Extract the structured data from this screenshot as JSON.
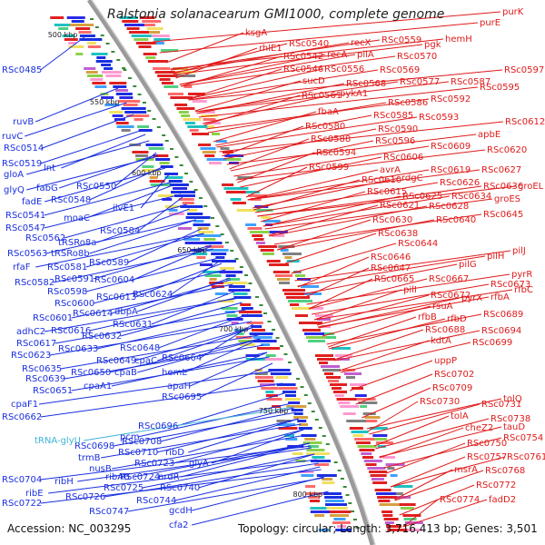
{
  "title": "Ralstonia solanacearum GMI1000, complete genome",
  "footer": {
    "accession_label": "Accession:",
    "accession": "NC_003295",
    "topology_label": "Topology:",
    "topology": "circular",
    "length_label": "Length:",
    "length": "3,716,413 bp",
    "genes_label": "Genes:",
    "genes": "3,501"
  },
  "colors": {
    "forward_labels": "#1a2fe0",
    "reverse_labels": "#e01a1a",
    "rna_labels": "#3fb2d8",
    "backbone": "#9a9a9a",
    "tick": "#3a8a3a"
  },
  "scale_ticks": [
    "500 kbp",
    "550 kbp",
    "600 kbp",
    "650 kbp",
    "700 kbp",
    "750 kbp",
    "800 kbp"
  ],
  "left_labels": [
    "RSc0485",
    "ruvB",
    "ruvC",
    "RSc0514",
    "RSc0519",
    "lnt",
    "gloA",
    "glyQ",
    "fabG",
    "fadE",
    "RSc0548",
    "RSc0550",
    "RSc0541",
    "moaC",
    "ilvE1",
    "RSc0547",
    "RSc0562",
    "tRSRo8a",
    "RSc0584",
    "RSc0563",
    "tRSRo8b",
    "rfaF",
    "RSc0581",
    "RSc0589",
    "RSc0582",
    "RSc0591",
    "RSc0604",
    "RSc0598",
    "RSc0613",
    "RSc0624",
    "RSc0600",
    "RSc0601",
    "RSc0614",
    "dbpA",
    "adhC2",
    "RSc0616",
    "RSc0631",
    "RSc0617",
    "RSc0632",
    "RSc0623",
    "RSc0633",
    "RSc0648",
    "RSc0635",
    "RSc0649",
    "cpaC",
    "RSc0664",
    "RSc0639",
    "RSc0650",
    "cpaB",
    "hemL",
    "RSc0651",
    "cpaA1",
    "apaH",
    "cpaF1",
    "RSc0695",
    "RSc0662",
    "RSc0696",
    "pcm",
    "RSc0698",
    "RSc0708",
    "trmB",
    "RSc0710",
    "ribD",
    "tRNA-glyU",
    "nusB",
    "RSc0723",
    "glyA",
    "RSc0704",
    "ribH",
    "ribAB",
    "RSc0724",
    "nrdR",
    "RSc0725",
    "RSc0740",
    "ribE",
    "RSc0726",
    "RSc0744",
    "gcdH",
    "RSc0722",
    "RSc0747",
    "cfa2"
  ],
  "right_labels": [
    "purK",
    "purE",
    "ksgA",
    "rhlE1",
    "RSc0540",
    "recX",
    "RSc0559",
    "pgk",
    "hemH",
    "RSc0542",
    "recA",
    "pilA",
    "RSc0570",
    "RSc0546",
    "RSc0556",
    "RSc0569",
    "RSc0597",
    "sucD",
    "RSc0568",
    "RSc0577",
    "RSc0587",
    "RSc0595",
    "RSc0561",
    "pykA1",
    "RSc0586",
    "RSc0592",
    "fbaA",
    "RSc0585",
    "RSc0593",
    "RSc0580",
    "RSc0590",
    "RSc0612",
    "RSc0588",
    "RSc0596",
    "apbE",
    "RSc0594",
    "RSc0609",
    "RSc0620",
    "RSc0606",
    "RSc0599",
    "avrA",
    "RSc0619",
    "RSc0627",
    "RSc0610",
    "rdgC",
    "RSc0626",
    "RSc0636",
    "groEL",
    "RSc0615",
    "RSc0625",
    "RSc0634",
    "groES",
    "RSc0621",
    "RSc0628",
    "RSc0645",
    "RSc0630",
    "RSc0640",
    "RSc0638",
    "RSc0644",
    "RSc0646",
    "pilJ",
    "pilH",
    "RSc0647",
    "pilG",
    "pyrR",
    "RSc0665",
    "RSc0667",
    "RSc0673",
    "pilI",
    "RSc0672",
    "pyrX",
    "rfbA",
    "rfbC",
    "rsuA",
    "rfbB",
    "RSc0689",
    "rfbD",
    "RSc0688",
    "RSc0694",
    "kdtA",
    "RSc0699",
    "uppP",
    "RSc0702",
    "RSc0709",
    "RSc0730",
    "RSc0731",
    "tolQ",
    "tolA",
    "RSc0738",
    "cheZ2",
    "tauD",
    "RSc0754",
    "RSc0750",
    "RSc0757",
    "RSc0761",
    "msrA",
    "RSc0768",
    "RSc0772",
    "RSc0774",
    "fadD2"
  ]
}
